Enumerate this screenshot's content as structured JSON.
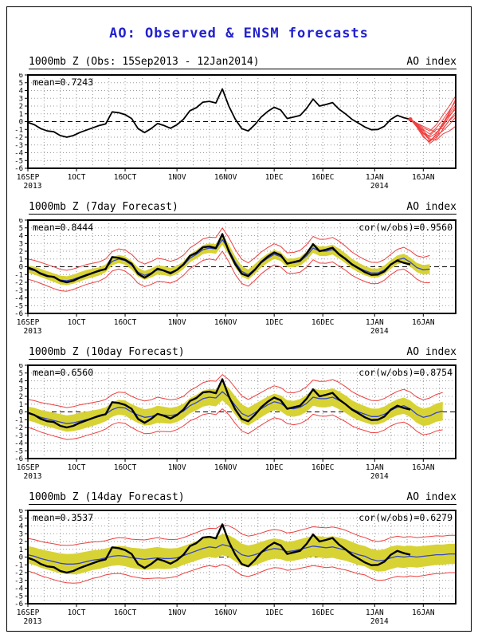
{
  "page": {
    "title": "AO: Observed & ENSM forecasts",
    "title_color": "#2222cc"
  },
  "chart_data": {
    "type": "line",
    "description": "Arctic Oscillation index: observed series and ENSM ensemble forecasts, 4 stacked panels",
    "ylim": [
      -6,
      6
    ],
    "y_ticks": [
      6,
      5,
      4,
      3,
      2,
      1,
      0,
      -1,
      -2,
      -3,
      -4,
      -5,
      -6
    ],
    "x_axis": {
      "unit": "days since 16SEP2013",
      "end_day": 132,
      "ticks": [
        {
          "day": 0,
          "label": "16SEP",
          "year": "2013"
        },
        {
          "day": 15,
          "label": "1OCT"
        },
        {
          "day": 30,
          "label": "16OCT"
        },
        {
          "day": 46,
          "label": "1NOV"
        },
        {
          "day": 61,
          "label": "16NOV"
        },
        {
          "day": 76,
          "label": "1DEC"
        },
        {
          "day": 91,
          "label": "16DEC"
        },
        {
          "day": 107,
          "label": "1JAN",
          "year": "2014"
        },
        {
          "day": 122,
          "label": "16JAN"
        }
      ]
    },
    "colors": {
      "observed_black": "#000000",
      "ensemble_red": "#ee4040",
      "mean_blue": "#3344cc",
      "spread_yellow": "#d8d334",
      "grid_gray": "#9a9a9a",
      "zero_line": "#000000"
    },
    "observed": {
      "day_start": 0,
      "day_step": 2,
      "end_day": 118,
      "values": [
        -0.1,
        -0.4,
        -0.9,
        -1.2,
        -1.3,
        -1.8,
        -2.0,
        -1.8,
        -1.4,
        -1.1,
        -0.8,
        -0.5,
        -0.3,
        1.25,
        1.15,
        0.9,
        0.4,
        -0.9,
        -1.4,
        -0.9,
        -0.25,
        -0.5,
        -0.85,
        -0.4,
        0.3,
        1.4,
        1.8,
        2.5,
        2.6,
        2.4,
        4.2,
        2.0,
        0.3,
        -0.9,
        -1.2,
        -0.4,
        0.6,
        1.3,
        1.85,
        1.5,
        0.4,
        0.6,
        0.8,
        1.7,
        2.9,
        2.0,
        2.2,
        2.45,
        1.6,
        1.0,
        0.3,
        -0.2,
        -0.7,
        -1.05,
        -1.0,
        -0.6,
        0.3,
        0.8,
        0.5,
        0.3
      ]
    },
    "panels": [
      {
        "id": "observed",
        "title": "1000mb Z (Obs: 15Sep2013 - 12Jan2014)",
        "right_label": "AO index",
        "mean_label": "mean=0.7243",
        "cor_label": "",
        "end_marker": {
          "day": 118,
          "value": 0.3
        },
        "ensemble_day_start": 118,
        "ensemble_day_step": 2,
        "ensemble_members": [
          [
            0.3,
            -0.4,
            -1.2,
            -2.0,
            -1.5,
            -0.5,
            1.0,
            2.2
          ],
          [
            0.3,
            -0.6,
            -1.8,
            -2.8,
            -2.2,
            -1.0,
            0.2,
            1.2
          ],
          [
            0.3,
            -0.2,
            -0.8,
            -1.2,
            -0.4,
            0.8,
            2.0,
            3.3
          ],
          [
            0.3,
            -0.5,
            -1.5,
            -2.4,
            -1.8,
            -1.2,
            -0.4,
            0.6
          ],
          [
            0.3,
            -0.3,
            -1.0,
            -1.6,
            -0.8,
            0.2,
            1.4,
            2.6
          ],
          [
            0.3,
            -0.7,
            -2.0,
            -2.6,
            -1.6,
            -0.2,
            0.8,
            1.6
          ],
          [
            0.3,
            -0.4,
            -1.4,
            -2.2,
            -2.4,
            -1.6,
            -1.2,
            -0.6
          ],
          [
            0.3,
            -0.2,
            -0.6,
            -1.0,
            -1.4,
            -0.6,
            0.6,
            1.9
          ],
          [
            0.3,
            -0.5,
            -1.6,
            -1.8,
            -1.0,
            -0.9,
            0.1,
            0.9
          ],
          [
            0.3,
            -0.6,
            -1.1,
            -2.5,
            -2.0,
            -0.3,
            1.2,
            2.9
          ]
        ]
      },
      {
        "id": "fc7",
        "title": "1000mb Z (7day Forecast)",
        "right_label": "AO index",
        "mean_label": "mean=0.8444",
        "cor_label": "cor(w/obs)=0.9560",
        "mean_line": {
          "day_start": 0,
          "day_step": 2,
          "values": [
            -0.3,
            -0.5,
            -0.8,
            -1.1,
            -1.4,
            -1.7,
            -1.8,
            -1.6,
            -1.3,
            -1.0,
            -0.8,
            -0.6,
            -0.2,
            0.7,
            1.0,
            0.8,
            0.2,
            -0.7,
            -1.1,
            -0.8,
            -0.4,
            -0.5,
            -0.7,
            -0.4,
            0.2,
            1.1,
            1.6,
            2.2,
            2.4,
            2.3,
            3.5,
            2.2,
            0.6,
            -0.6,
            -1.0,
            -0.3,
            0.5,
            1.1,
            1.6,
            1.3,
            0.5,
            0.5,
            0.7,
            1.4,
            2.4,
            2.0,
            2.0,
            2.2,
            1.7,
            1.1,
            0.4,
            -0.1,
            -0.5,
            -0.8,
            -0.8,
            -0.4,
            0.3,
            0.9,
            1.1,
            0.6,
            -0.1,
            -0.4,
            -0.3
          ]
        },
        "yellow_halfwidth": {
          "day_start": 0,
          "day_step": 8,
          "values": [
            0.5,
            0.55,
            0.6,
            0.5,
            0.55,
            0.6,
            0.5,
            0.6,
            0.7,
            0.6,
            0.55,
            0.6,
            0.65,
            0.6,
            0.55,
            0.6,
            0.65
          ]
        },
        "red_halfwidth": {
          "day_start": 0,
          "day_step": 8,
          "values": [
            1.3,
            1.4,
            1.3,
            1.2,
            1.4,
            1.5,
            1.3,
            1.4,
            1.6,
            1.4,
            1.3,
            1.5,
            1.6,
            1.4,
            1.3,
            1.5,
            2.0
          ]
        }
      },
      {
        "id": "fc10",
        "title": "1000mb Z (10day Forecast)",
        "right_label": "AO index",
        "mean_label": "mean=0.6560",
        "cor_label": "cor(w/obs)=0.8754",
        "mean_line": {
          "day_start": 0,
          "day_step": 2,
          "values": [
            -0.2,
            -0.4,
            -0.7,
            -0.9,
            -1.1,
            -1.3,
            -1.5,
            -1.4,
            -1.2,
            -1.0,
            -0.8,
            -0.6,
            -0.3,
            0.3,
            0.6,
            0.5,
            0.0,
            -0.4,
            -0.7,
            -0.6,
            -0.3,
            -0.4,
            -0.5,
            -0.3,
            0.1,
            0.8,
            1.2,
            1.7,
            1.9,
            1.8,
            2.6,
            1.9,
            0.8,
            -0.2,
            -0.6,
            -0.1,
            0.4,
            0.9,
            1.3,
            1.1,
            0.5,
            0.4,
            0.6,
            1.1,
            1.9,
            1.7,
            1.7,
            1.9,
            1.5,
            1.0,
            0.4,
            0.0,
            -0.3,
            -0.6,
            -0.6,
            -0.3,
            0.2,
            0.6,
            0.8,
            0.4,
            -0.3,
            -0.7,
            -0.5,
            -0.1,
            0.1
          ]
        },
        "yellow_halfwidth": {
          "day_start": 0,
          "day_step": 8,
          "values": [
            0.9,
            1.0,
            1.1,
            0.9,
            1.0,
            1.1,
            0.95,
            1.05,
            1.2,
            1.1,
            1.0,
            1.1,
            1.15,
            1.05,
            1.0,
            1.1,
            1.2
          ]
        },
        "red_halfwidth": {
          "day_start": 0,
          "day_step": 8,
          "values": [
            1.8,
            2.0,
            2.1,
            1.9,
            2.0,
            2.2,
            1.9,
            2.1,
            2.3,
            2.1,
            2.0,
            2.2,
            2.3,
            2.1,
            2.0,
            2.2,
            2.4
          ]
        }
      },
      {
        "id": "fc14",
        "title": "1000mb Z (14day Forecast)",
        "right_label": "AO index",
        "mean_label": "mean=0.3537",
        "cor_label": "cor(w/obs)=0.6279",
        "mean_line": {
          "day_start": 0,
          "day_step": 2,
          "values": [
            0.3,
            0.1,
            -0.2,
            -0.4,
            -0.6,
            -0.8,
            -0.9,
            -0.9,
            -0.8,
            -0.6,
            -0.4,
            -0.3,
            -0.1,
            0.1,
            0.2,
            0.1,
            -0.1,
            -0.2,
            -0.3,
            -0.2,
            -0.1,
            -0.2,
            -0.2,
            -0.1,
            0.2,
            0.5,
            0.8,
            1.1,
            1.3,
            1.2,
            1.6,
            1.4,
            0.9,
            0.3,
            0.1,
            0.3,
            0.6,
            0.9,
            1.1,
            1.0,
            0.7,
            0.8,
            1.0,
            1.2,
            1.4,
            1.3,
            1.2,
            1.3,
            1.1,
            0.9,
            0.6,
            0.3,
            0.1,
            -0.3,
            -0.5,
            -0.4,
            -0.1,
            0.1,
            0.0,
            0.1,
            0.0,
            0.1,
            0.2,
            0.3,
            0.3,
            0.4,
            0.4
          ]
        },
        "yellow_halfwidth": {
          "day_start": 0,
          "day_step": 8,
          "values": [
            1.1,
            1.25,
            1.35,
            1.2,
            1.3,
            1.4,
            1.2,
            1.3,
            1.45,
            1.35,
            1.25,
            1.35,
            1.4,
            1.3,
            1.45,
            1.35,
            1.3
          ]
        },
        "red_halfwidth": {
          "day_start": 0,
          "day_step": 8,
          "values": [
            2.1,
            2.3,
            2.5,
            2.2,
            2.4,
            2.6,
            2.3,
            2.4,
            2.7,
            2.5,
            2.4,
            2.5,
            2.6,
            2.4,
            2.6,
            2.5,
            2.4
          ]
        }
      }
    ]
  }
}
